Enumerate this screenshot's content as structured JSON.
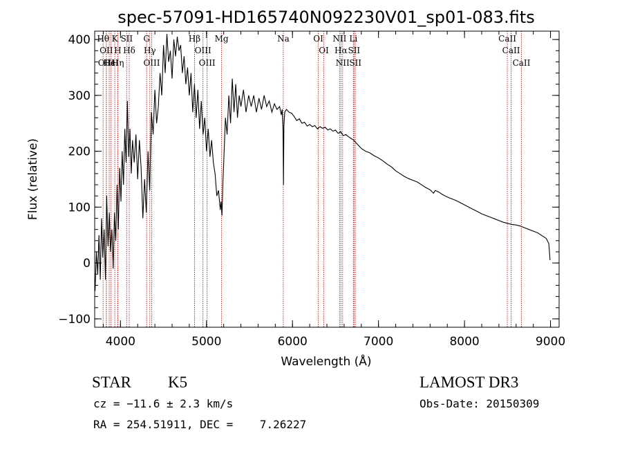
{
  "header": {
    "title": "spec-57091-HD165740N092230V01_sp01-083.fits"
  },
  "chart_data": {
    "type": "line",
    "title": "spec-57091-HD165740N092230V01_sp01-083.fits",
    "xlabel": "Wavelength (Å)",
    "ylabel": "Flux (relative)",
    "xlim": [
      3700,
      9100
    ],
    "ylim": [
      -115,
      415
    ],
    "x_ticks": [
      4000,
      5000,
      6000,
      7000,
      8000,
      9000
    ],
    "y_ticks": [
      -100,
      0,
      100,
      200,
      300,
      400
    ],
    "line_color": "#000000",
    "marker_color": "#b22222",
    "series": [
      {
        "x": [
          3705,
          3720,
          3735,
          3750,
          3765,
          3780,
          3795,
          3810,
          3825,
          3840,
          3855,
          3870,
          3885,
          3900,
          3915,
          3930,
          3945,
          3960,
          3975,
          3990,
          4005,
          4020,
          4035,
          4050,
          4065,
          4080,
          4095,
          4110,
          4125,
          4140,
          4160,
          4180,
          4200,
          4220,
          4240,
          4260,
          4280,
          4300,
          4320,
          4340,
          4360,
          4380,
          4400,
          4420,
          4440,
          4460,
          4480,
          4500,
          4520,
          4540,
          4560,
          4580,
          4600,
          4620,
          4640,
          4660,
          4680,
          4700,
          4720,
          4740,
          4760,
          4780,
          4800,
          4820,
          4840,
          4860,
          4880,
          4900,
          4920,
          4940,
          4960,
          4980,
          5000,
          5020,
          5040,
          5060,
          5080,
          5100,
          5120,
          5140,
          5160,
          5170,
          5180,
          5190,
          5200,
          5220,
          5240,
          5260,
          5280,
          5300,
          5320,
          5340,
          5360,
          5380,
          5400,
          5430,
          5460,
          5490,
          5520,
          5550,
          5580,
          5610,
          5640,
          5670,
          5700,
          5730,
          5760,
          5790,
          5820,
          5850,
          5870,
          5880,
          5890,
          5895,
          5900,
          5910,
          5930,
          5960,
          5990,
          6020,
          6050,
          6080,
          6110,
          6140,
          6170,
          6200,
          6230,
          6260,
          6290,
          6320,
          6350,
          6380,
          6410,
          6440,
          6470,
          6500,
          6530,
          6560,
          6590,
          6620,
          6650,
          6680,
          6710,
          6740,
          6770,
          6800,
          6850,
          6900,
          6950,
          7000,
          7050,
          7100,
          7150,
          7200,
          7250,
          7300,
          7350,
          7400,
          7450,
          7500,
          7550,
          7600,
          7620,
          7640,
          7660,
          7700,
          7750,
          7800,
          7850,
          7900,
          7950,
          8000,
          8050,
          8100,
          8150,
          8200,
          8250,
          8300,
          8350,
          8400,
          8450,
          8500,
          8550,
          8600,
          8650,
          8700,
          8750,
          8800,
          8850,
          8900,
          8950,
          8980,
          8995
        ],
        "y": [
          -50,
          20,
          -20,
          50,
          -30,
          80,
          10,
          60,
          -30,
          120,
          30,
          90,
          20,
          60,
          -10,
          90,
          40,
          140,
          60,
          170,
          110,
          200,
          140,
          240,
          180,
          290,
          190,
          240,
          160,
          220,
          180,
          230,
          150,
          220,
          170,
          80,
          150,
          90,
          200,
          130,
          270,
          230,
          310,
          250,
          280,
          340,
          300,
          390,
          340,
          410,
          360,
          380,
          330,
          400,
          370,
          405,
          380,
          390,
          340,
          370,
          320,
          350,
          300,
          340,
          270,
          320,
          260,
          310,
          240,
          290,
          230,
          260,
          200,
          240,
          190,
          220,
          180,
          160,
          120,
          130,
          95,
          110,
          85,
          140,
          180,
          260,
          230,
          300,
          250,
          330,
          270,
          320,
          260,
          300,
          280,
          310,
          270,
          300,
          280,
          300,
          270,
          295,
          275,
          300,
          280,
          290,
          270,
          285,
          275,
          280,
          265,
          275,
          240,
          140,
          245,
          270,
          275,
          270,
          268,
          262,
          255,
          258,
          250,
          252,
          245,
          248,
          244,
          246,
          240,
          244,
          241,
          243,
          238,
          240,
          236,
          238,
          232,
          235,
          228,
          230,
          226,
          223,
          220,
          215,
          210,
          205,
          200,
          197,
          192,
          188,
          183,
          177,
          172,
          165,
          160,
          155,
          151,
          148,
          145,
          140,
          135,
          131,
          128,
          125,
          130,
          127,
          122,
          118,
          115,
          112,
          108,
          104,
          100,
          96,
          92,
          88,
          85,
          82,
          79,
          76,
          73,
          71,
          69,
          68,
          66,
          63,
          60,
          57,
          54,
          49,
          44,
          35,
          5
        ]
      }
    ],
    "line_markers": [
      {
        "wl": 3798,
        "label": "Hθ"
      },
      {
        "wl": 3835,
        "label": "OII"
      },
      {
        "wl": 3835,
        "label": "OIII"
      },
      {
        "wl": 3869,
        "label": "Hε"
      },
      {
        "wl": 3889,
        "label": "HeI"
      },
      {
        "wl": 3934,
        "label": "K"
      },
      {
        "wl": 3968,
        "label": "H"
      },
      {
        "wl": 3970,
        "label": "Hη"
      },
      {
        "wl": 4072,
        "label": "SII"
      },
      {
        "wl": 4102,
        "label": "Hδ"
      },
      {
        "wl": 4304,
        "label": "G"
      },
      {
        "wl": 4341,
        "label": "Hγ"
      },
      {
        "wl": 4363,
        "label": "OIII"
      },
      {
        "wl": 4861,
        "label": "Hβ"
      },
      {
        "wl": 4959,
        "label": "OIII"
      },
      {
        "wl": 5007,
        "label": "OIII"
      },
      {
        "wl": 5175,
        "label": "Mg"
      },
      {
        "wl": 5893,
        "label": "Na"
      },
      {
        "wl": 6300,
        "label": "OI"
      },
      {
        "wl": 6364,
        "label": "OI"
      },
      {
        "wl": 6548,
        "label": "NII"
      },
      {
        "wl": 6563,
        "label": "Hα"
      },
      {
        "wl": 6583,
        "label": "NII"
      },
      {
        "wl": 6708,
        "label": "Li"
      },
      {
        "wl": 6716,
        "label": "SII"
      },
      {
        "wl": 6731,
        "label": "SII"
      },
      {
        "wl": 8498,
        "label": "CaII"
      },
      {
        "wl": 8542,
        "label": "CaII"
      },
      {
        "wl": 8662,
        "label": "CaII"
      }
    ]
  },
  "info": {
    "class": "STAR",
    "subclass": "K5",
    "survey": "LAMOST DR3",
    "redshift": "cz = −11.6 ± 2.3 km/s",
    "obs_date": "Obs-Date: 20150309",
    "coords": "RA = 254.51911, DEC =    7.26227"
  }
}
